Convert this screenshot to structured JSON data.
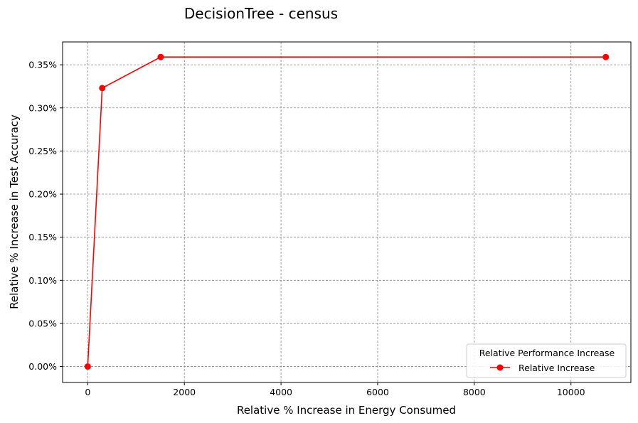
{
  "chart_data": {
    "type": "line",
    "title": "DecisionTree - census",
    "xlabel": "Relative % Increase in Energy Consumed",
    "ylabel": "Relative % Increase in Test Accuracy",
    "xlim": [
      -520,
      11240
    ],
    "ylim": [
      -0.0185,
      0.3765
    ],
    "x_ticks": [
      0,
      2000,
      4000,
      6000,
      8000,
      10000
    ],
    "x_tick_labels": [
      "0",
      "2000",
      "4000",
      "6000",
      "8000",
      "10000"
    ],
    "y_ticks": [
      0.0,
      0.05,
      0.1,
      0.15,
      0.2,
      0.25,
      0.3,
      0.35
    ],
    "y_tick_labels": [
      "0.00%",
      "0.05%",
      "0.10%",
      "0.15%",
      "0.20%",
      "0.25%",
      "0.30%",
      "0.35%"
    ],
    "grid": true,
    "legend_position": "bottom-right",
    "legend_title": "Relative Performance Increase",
    "series": [
      {
        "name": "Relative Increase",
        "color": "#ff0000",
        "marker": "circle",
        "x": [
          0,
          300,
          1510,
          10720
        ],
        "y": [
          0.0,
          0.323,
          0.359,
          0.359
        ]
      }
    ]
  }
}
